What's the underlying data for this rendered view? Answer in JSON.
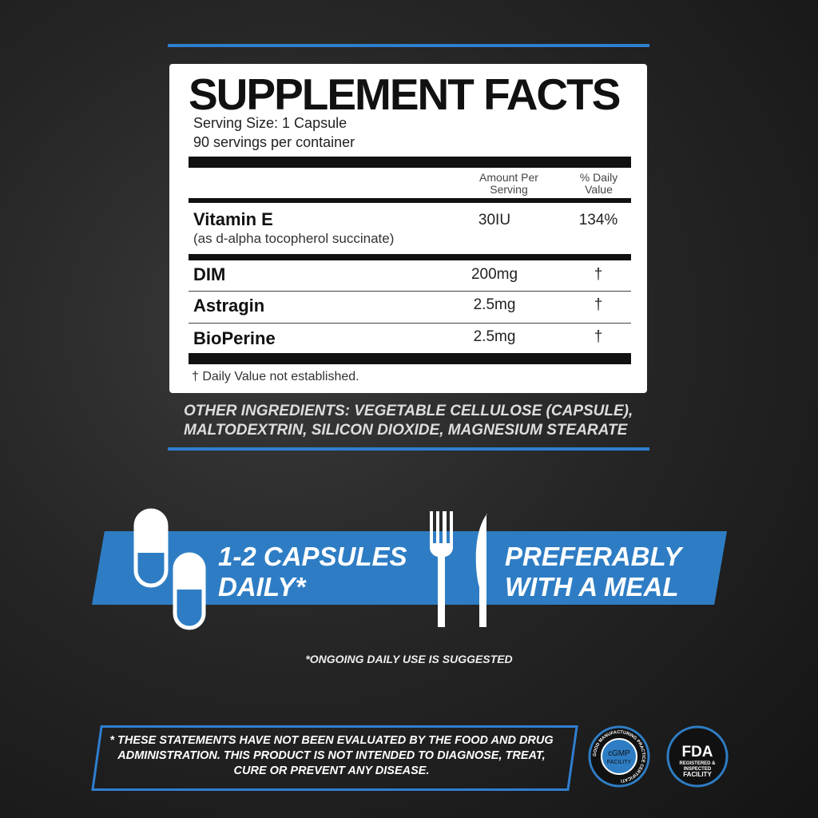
{
  "panel": {
    "title": "SUPPLEMENT FACTS",
    "serving_size": "Serving Size: 1 Capsule",
    "servings": "90 servings per container",
    "col_amount": "Amount Per Serving",
    "col_dv": "% Daily Value",
    "rows": [
      {
        "name": "Vitamin E",
        "sub": "(as d-alpha tocopherol succinate)",
        "amount": "30IU",
        "dv": "134%"
      },
      {
        "name": "DIM",
        "amount": "200mg",
        "dv": "†"
      },
      {
        "name": "Astragin",
        "amount": "2.5mg",
        "dv": "†"
      },
      {
        "name": "BioPerine",
        "amount": "2.5mg",
        "dv": "†"
      }
    ],
    "footnote": "† Daily Value not established."
  },
  "other_ingredients": {
    "label": "OTHER INGREDIENTS:",
    "text1": " VEGETABLE CELLULOSE (CAPSULE),",
    "text2": "MALTODEXTRIN, SILICON DIOXIDE, MAGNESIUM STEARATE"
  },
  "banner": {
    "dose1": "1-2 CAPSULES",
    "dose2": "DAILY*",
    "meal1": "PREFERABLY",
    "meal2": "WITH A MEAL"
  },
  "note": "*ONGOING DAILY USE IS SUGGESTED",
  "disclaimer": "* THESE STATEMENTS HAVE NOT BEEN EVALUATED BY THE FOOD AND DRUG ADMINISTRATION. THIS PRODUCT IS NOT INTENDED TO DIAGNOSE, TREAT, CURE OR PREVENT ANY DISEASE.",
  "badges": {
    "cgmp_ring": "GOOD MANUFACTURING PRACTICE CERTIFICATION",
    "cgmp": "cGMP FACILITY",
    "fda": "FDA",
    "fda_sub": "REGISTERED & INSPECTED FACILITY"
  },
  "colors": {
    "accent": "#2e7dc4",
    "background": "#262626"
  }
}
